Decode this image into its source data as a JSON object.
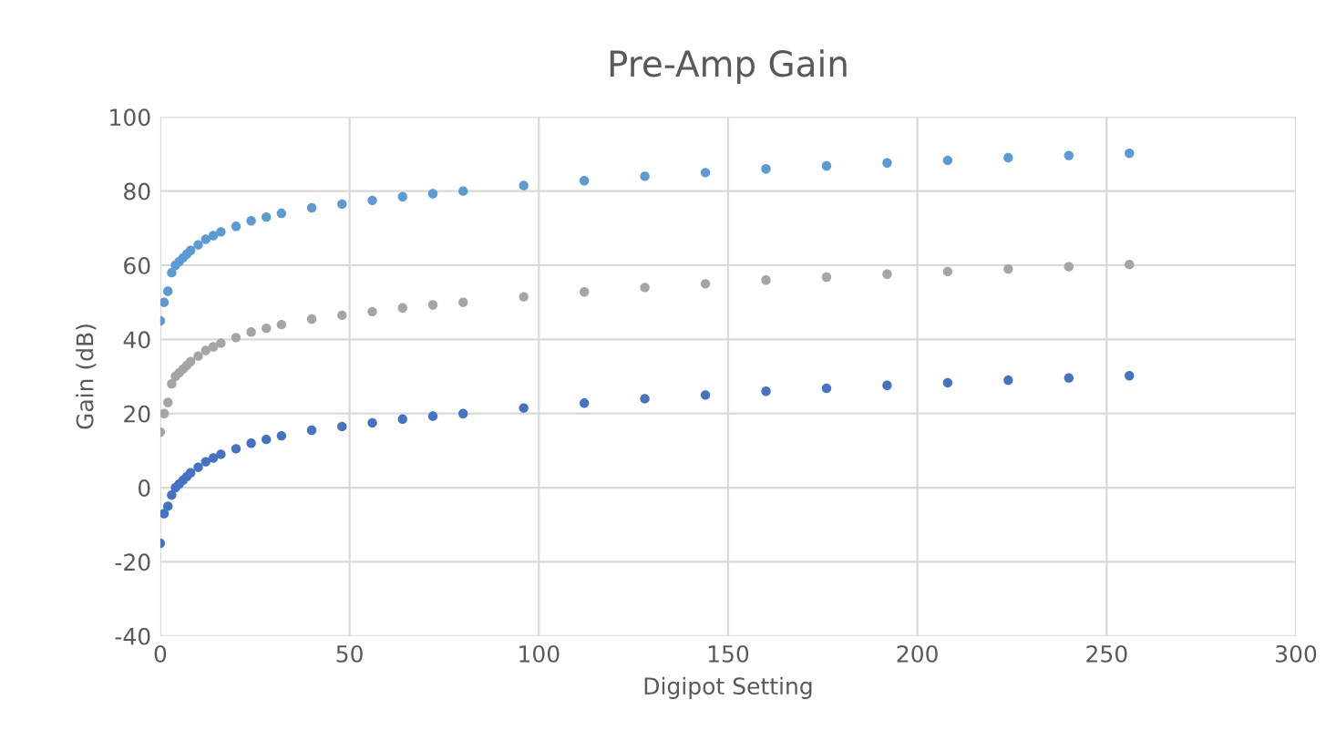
{
  "chart_data": {
    "type": "scatter",
    "title": "Pre-Amp Gain",
    "xlabel": "Digipot Setting",
    "ylabel": "Gain (dB)",
    "x": [
      0,
      1,
      2,
      3,
      4,
      5,
      6,
      7,
      8,
      10,
      12,
      14,
      16,
      20,
      24,
      28,
      32,
      40,
      48,
      56,
      64,
      72,
      80,
      96,
      112,
      128,
      144,
      160,
      176,
      192,
      208,
      224,
      240,
      256
    ],
    "series": [
      {
        "color": "#5b9bd5",
        "values": [
          45,
          50,
          53,
          58,
          60,
          61,
          62,
          63,
          64,
          65.5,
          67,
          68,
          69,
          70.5,
          72,
          73,
          74,
          75.5,
          76.5,
          77.5,
          78.5,
          79.3,
          80,
          81.5,
          82.8,
          84,
          85,
          86,
          86.8,
          87.6,
          88.3,
          89,
          89.6,
          90.2
        ]
      },
      {
        "color": "#a5a5a5",
        "values": [
          15,
          20,
          23,
          28,
          30,
          31,
          32,
          33,
          34,
          35.5,
          37,
          38,
          39,
          40.5,
          42,
          43,
          44,
          45.5,
          46.5,
          47.5,
          48.5,
          49.3,
          50,
          51.5,
          52.8,
          54,
          55,
          56,
          56.8,
          57.6,
          58.3,
          59,
          59.6,
          60.2
        ]
      },
      {
        "color": "#4472c4",
        "values": [
          -15,
          -7,
          -5,
          -2,
          0,
          1,
          2,
          3,
          4,
          5.5,
          7,
          8,
          9,
          10.5,
          12,
          13,
          14,
          15.5,
          16.5,
          17.5,
          18.5,
          19.3,
          20,
          21.5,
          22.8,
          24,
          25,
          26,
          26.8,
          27.6,
          28.3,
          29,
          29.6,
          30.2
        ]
      }
    ],
    "xlim": [
      0,
      300
    ],
    "xticks": [
      0,
      50,
      100,
      150,
      200,
      250,
      300
    ],
    "ylim": [
      -40,
      100
    ],
    "yticks": [
      -40,
      -20,
      0,
      20,
      40,
      60,
      80,
      100
    ],
    "grid": true,
    "marker": "circle",
    "legend": false
  }
}
